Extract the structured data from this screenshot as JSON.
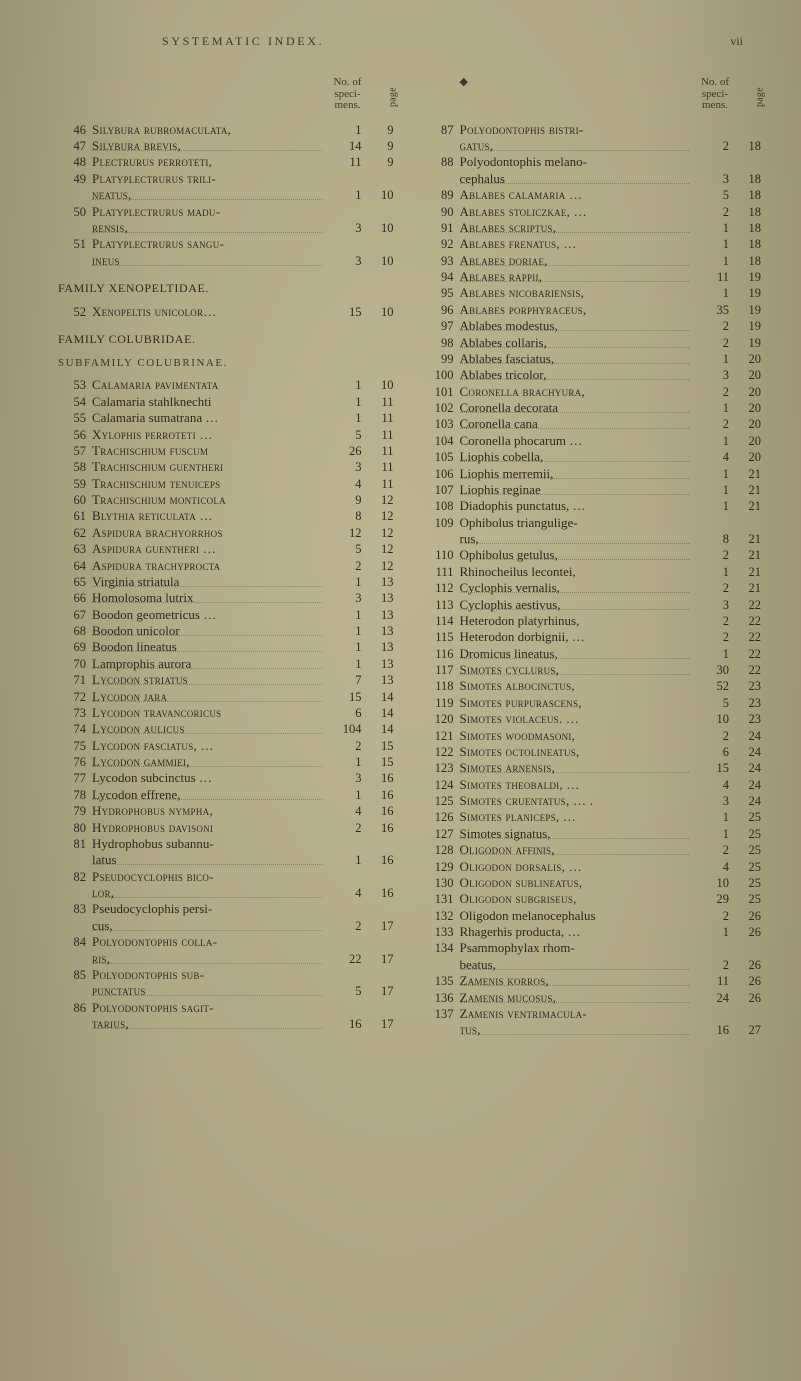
{
  "header": {
    "running_title": "SYSTEMATIC INDEX.",
    "folio": "vii"
  },
  "column_header": {
    "bullet": "◆",
    "num_label_line1": "No. of",
    "num_label_line2": "speci-",
    "num_label_line3": "mens.",
    "page_label": "page"
  },
  "left": {
    "entries_a": [
      {
        "n": "46",
        "name": "Silybura rubromaculata,",
        "sc": true,
        "spc": "1",
        "pg": "9"
      },
      {
        "n": "47",
        "name": "Silybura brevis,",
        "sc": true,
        "leader": true,
        "spc": "14",
        "pg": "9"
      },
      {
        "n": "48",
        "name": "Plectrurus perroteti,",
        "sc": true,
        "spc": "11",
        "pg": "9"
      },
      {
        "n": "49",
        "name": "Platyplectrurus trili-",
        "sc": true,
        "spc": "",
        "pg": ""
      },
      {
        "n": "",
        "cont": true,
        "name": "neatus,",
        "sc": true,
        "leader": true,
        "spc": "1",
        "pg": "10"
      },
      {
        "n": "50",
        "name": "Platyplectrurus madu-",
        "sc": true,
        "spc": "",
        "pg": ""
      },
      {
        "n": "",
        "cont": true,
        "name": "rensis,",
        "sc": true,
        "leader": true,
        "spc": "3",
        "pg": "10"
      },
      {
        "n": "51",
        "name": "Platyplectrurus sangu-",
        "sc": true,
        "spc": "",
        "pg": ""
      },
      {
        "n": "",
        "cont": true,
        "name": "ineus",
        "sc": true,
        "leader": true,
        "spc": "3",
        "pg": "10"
      }
    ],
    "family_a": "FAMILY XENOPELTIDAE.",
    "entries_b": [
      {
        "n": "52",
        "name": "Xenopeltis unicolor…",
        "sc": true,
        "spc": "15",
        "pg": "10"
      }
    ],
    "family_b": "FAMILY COLUBRIDAE.",
    "subfamily": "SUBFAMILY COLUBRINAE.",
    "entries_c": [
      {
        "n": "53",
        "name": "Calamaria pavimentata",
        "sc": true,
        "spc": "1",
        "pg": "10"
      },
      {
        "n": "54",
        "name": "Calamaria stahlknechti",
        "sc": false,
        "spc": "1",
        "pg": "11"
      },
      {
        "n": "55",
        "name": "Calamaria sumatrana …",
        "sc": false,
        "spc": "1",
        "pg": "11"
      },
      {
        "n": "56",
        "name": "Xylophis perroteti …",
        "sc": true,
        "spc": "5",
        "pg": "11"
      },
      {
        "n": "57",
        "name": "Trachischium fuscum",
        "sc": true,
        "spc": "26",
        "pg": "11"
      },
      {
        "n": "58",
        "name": "Trachischium guentheri",
        "sc": true,
        "spc": "3",
        "pg": "11"
      },
      {
        "n": "59",
        "name": "Trachischium tenuiceps",
        "sc": true,
        "spc": "4",
        "pg": "11"
      },
      {
        "n": "60",
        "name": "Trachischium monticola",
        "sc": true,
        "spc": "9",
        "pg": "12"
      },
      {
        "n": "61",
        "name": "Blythia reticulata …",
        "sc": true,
        "spc": "8",
        "pg": "12"
      },
      {
        "n": "62",
        "name": "Aspidura brachyorrhos",
        "sc": true,
        "spc": "12",
        "pg": "12"
      },
      {
        "n": "63",
        "name": "Aspidura guentheri …",
        "sc": true,
        "spc": "5",
        "pg": "12"
      },
      {
        "n": "64",
        "name": "Aspidura trachyprocta",
        "sc": true,
        "spc": "2",
        "pg": "12"
      },
      {
        "n": "65",
        "name": "Virginia striatula",
        "sc": false,
        "leader": true,
        "spc": "1",
        "pg": "13"
      },
      {
        "n": "66",
        "name": "Homolosoma lutrix",
        "sc": false,
        "leader": true,
        "spc": "3",
        "pg": "13"
      },
      {
        "n": "67",
        "name": "Boodon geometricus …",
        "sc": false,
        "spc": "1",
        "pg": "13"
      },
      {
        "n": "68",
        "name": "Boodon unicolor",
        "sc": false,
        "leader": true,
        "spc": "1",
        "pg": "13"
      },
      {
        "n": "69",
        "name": "Boodon lineatus",
        "sc": false,
        "leader": true,
        "spc": "1",
        "pg": "13"
      },
      {
        "n": "70",
        "name": "Lamprophis aurora",
        "sc": false,
        "leader": true,
        "spc": "1",
        "pg": "13"
      },
      {
        "n": "71",
        "name": "Lycodon striatus",
        "sc": true,
        "leader": true,
        "spc": "7",
        "pg": "13"
      },
      {
        "n": "72",
        "name": "Lycodon jara",
        "sc": true,
        "leader": true,
        "spc": "15",
        "pg": "14"
      },
      {
        "n": "73",
        "name": "Lycodon travancoricus",
        "sc": true,
        "spc": "6",
        "pg": "14"
      },
      {
        "n": "74",
        "name": "Lycodon aulicus",
        "sc": true,
        "leader": true,
        "spc": "104",
        "pg": "14"
      },
      {
        "n": "75",
        "name": "Lycodon fasciatus, …",
        "sc": true,
        "spc": "2",
        "pg": "15"
      },
      {
        "n": "76",
        "name": "Lycodon gammiei,",
        "sc": true,
        "leader": true,
        "spc": "1",
        "pg": "15"
      },
      {
        "n": "77",
        "name": "Lycodon subcinctus …",
        "sc": false,
        "spc": "3",
        "pg": "16"
      },
      {
        "n": "78",
        "name": "Lycodon effrene,",
        "sc": false,
        "leader": true,
        "spc": "1",
        "pg": "16"
      },
      {
        "n": "79",
        "name": "Hydrophobus nympha,",
        "sc": true,
        "spc": "4",
        "pg": "16"
      },
      {
        "n": "80",
        "name": "Hydrophobus davisoni",
        "sc": true,
        "spc": "2",
        "pg": "16"
      },
      {
        "n": "81",
        "name": "Hydrophobus subannu-",
        "sc": false,
        "spc": "",
        "pg": ""
      },
      {
        "n": "",
        "cont": true,
        "name": "latus",
        "sc": false,
        "leader": true,
        "spc": "1",
        "pg": "16"
      },
      {
        "n": "82",
        "name": "Pseudocyclophis bico-",
        "sc": true,
        "spc": "",
        "pg": ""
      },
      {
        "n": "",
        "cont": true,
        "name": "lor,",
        "sc": true,
        "leader": true,
        "spc": "4",
        "pg": "16"
      },
      {
        "n": "83",
        "name": "Pseudocyclophis persi-",
        "sc": false,
        "spc": "",
        "pg": ""
      },
      {
        "n": "",
        "cont": true,
        "name": "cus,",
        "sc": false,
        "leader": true,
        "spc": "2",
        "pg": "17"
      },
      {
        "n": "84",
        "name": "Polyodontophis colla-",
        "sc": true,
        "spc": "",
        "pg": ""
      },
      {
        "n": "",
        "cont": true,
        "name": "ris,",
        "sc": true,
        "leader": true,
        "spc": "22",
        "pg": "17"
      },
      {
        "n": "85",
        "name": "Polyodontophis sub-",
        "sc": true,
        "spc": "",
        "pg": ""
      },
      {
        "n": "",
        "cont": true,
        "name": "punctatus",
        "sc": true,
        "leader": true,
        "spc": "5",
        "pg": "17"
      },
      {
        "n": "86",
        "name": "Polyodontophis sagit-",
        "sc": true,
        "spc": "",
        "pg": ""
      },
      {
        "n": "",
        "cont": true,
        "name": "tarius,",
        "sc": true,
        "leader": true,
        "spc": "16",
        "pg": "17"
      }
    ]
  },
  "right": {
    "entries": [
      {
        "n": "87",
        "name": "Polyodontophis bistri-",
        "sc": true,
        "spc": "",
        "pg": ""
      },
      {
        "n": "",
        "cont": true,
        "name": "gatus,",
        "sc": true,
        "leader": true,
        "spc": "2",
        "pg": "18"
      },
      {
        "n": "88",
        "name": "Polyodontophis melano-",
        "sc": false,
        "spc": "",
        "pg": ""
      },
      {
        "n": "",
        "cont": true,
        "name": "cephalus",
        "sc": false,
        "leader": true,
        "spc": "3",
        "pg": "18"
      },
      {
        "n": "89",
        "name": "Ablabes calamaria …",
        "sc": true,
        "spc": "5",
        "pg": "18"
      },
      {
        "n": "90",
        "name": "Ablabes stoliczkae, …",
        "sc": true,
        "spc": "2",
        "pg": "18"
      },
      {
        "n": "91",
        "name": "Ablabes scriptus,",
        "sc": true,
        "leader": true,
        "spc": "1",
        "pg": "18"
      },
      {
        "n": "92",
        "name": "Ablabes frenatus, …",
        "sc": true,
        "spc": "1",
        "pg": "18"
      },
      {
        "n": "93",
        "name": "Ablabes doriae,",
        "sc": true,
        "leader": true,
        "spc": "1",
        "pg": "18"
      },
      {
        "n": "94",
        "name": "Ablabes rappii,",
        "sc": true,
        "leader": true,
        "spc": "11",
        "pg": "19"
      },
      {
        "n": "95",
        "name": "Ablabes nicobariensis,",
        "sc": true,
        "spc": "1",
        "pg": "19"
      },
      {
        "n": "96",
        "name": "Ablabes porphyraceus,",
        "sc": true,
        "spc": "35",
        "pg": "19"
      },
      {
        "n": "97",
        "name": "Ablabes modestus,",
        "sc": false,
        "leader": true,
        "spc": "2",
        "pg": "19"
      },
      {
        "n": "98",
        "name": "Ablabes collaris,",
        "sc": false,
        "leader": true,
        "spc": "2",
        "pg": "19"
      },
      {
        "n": "99",
        "name": "Ablabes fasciatus,",
        "sc": false,
        "leader": true,
        "spc": "1",
        "pg": "20"
      },
      {
        "n": "100",
        "name": "Ablabes tricolor,",
        "sc": false,
        "leader": true,
        "spc": "3",
        "pg": "20"
      },
      {
        "n": "101",
        "name": "Coronella brachyura,",
        "sc": true,
        "spc": "2",
        "pg": "20"
      },
      {
        "n": "102",
        "name": "Coronella decorata",
        "sc": false,
        "leader": true,
        "spc": "1",
        "pg": "20"
      },
      {
        "n": "103",
        "name": "Coronella cana",
        "sc": false,
        "leader": true,
        "spc": "2",
        "pg": "20"
      },
      {
        "n": "104",
        "name": "Coronella phocarum …",
        "sc": false,
        "spc": "1",
        "pg": "20"
      },
      {
        "n": "105",
        "name": "Liophis cobella,",
        "sc": false,
        "leader": true,
        "spc": "4",
        "pg": "20"
      },
      {
        "n": "106",
        "name": "Liophis merremii,",
        "sc": false,
        "leader": true,
        "spc": "1",
        "pg": "21"
      },
      {
        "n": "107",
        "name": "Liophis reginae",
        "sc": false,
        "leader": true,
        "spc": "1",
        "pg": "21"
      },
      {
        "n": "108",
        "name": "Diadophis punctatus, …",
        "sc": false,
        "spc": "1",
        "pg": "21"
      },
      {
        "n": "109",
        "name": "Ophibolus triangulige-",
        "sc": false,
        "spc": "",
        "pg": ""
      },
      {
        "n": "",
        "cont": true,
        "name": "rus,",
        "sc": false,
        "leader": true,
        "spc": "8",
        "pg": "21"
      },
      {
        "n": "110",
        "name": "Ophibolus getulus,",
        "sc": false,
        "leader": true,
        "spc": "2",
        "pg": "21"
      },
      {
        "n": "111",
        "name": "Rhinocheilus lecontei,",
        "sc": false,
        "spc": "1",
        "pg": "21"
      },
      {
        "n": "112",
        "name": "Cyclophis vernalis,",
        "sc": false,
        "leader": true,
        "spc": "2",
        "pg": "21"
      },
      {
        "n": "113",
        "name": "Cyclophis aestivus,",
        "sc": false,
        "leader": true,
        "spc": "3",
        "pg": "22"
      },
      {
        "n": "114",
        "name": "Heterodon platyrhinus,",
        "sc": false,
        "spc": "2",
        "pg": "22"
      },
      {
        "n": "115",
        "name": "Heterodon dorbignii, …",
        "sc": false,
        "spc": "2",
        "pg": "22"
      },
      {
        "n": "116",
        "name": "Dromicus lineatus,",
        "sc": false,
        "leader": true,
        "spc": "1",
        "pg": "22"
      },
      {
        "n": "117",
        "name": "Simotes cyclurus,",
        "sc": true,
        "leader": true,
        "spc": "30",
        "pg": "22"
      },
      {
        "n": "118",
        "name": "Simotes albocinctus,",
        "sc": true,
        "spc": "52",
        "pg": "23"
      },
      {
        "n": "119",
        "name": "Simotes purpurascens,",
        "sc": true,
        "spc": "5",
        "pg": "23"
      },
      {
        "n": "120",
        "name": "Simotes violaceus. …",
        "sc": true,
        "spc": "10",
        "pg": "23"
      },
      {
        "n": "121",
        "name": "Simotes woodmasoni,",
        "sc": true,
        "spc": "2",
        "pg": "24"
      },
      {
        "n": "122",
        "name": "Simotes octolineatus,",
        "sc": true,
        "spc": "6",
        "pg": "24"
      },
      {
        "n": "123",
        "name": "Simotes arnensis,",
        "sc": true,
        "leader": true,
        "spc": "15",
        "pg": "24"
      },
      {
        "n": "124",
        "name": "Simotes theobaldi, …",
        "sc": true,
        "spc": "4",
        "pg": "24"
      },
      {
        "n": "125",
        "name": "Simotes cruentatus, … .",
        "sc": true,
        "spc": "3",
        "pg": "24"
      },
      {
        "n": "126",
        "name": "Simotes planiceps, …",
        "sc": true,
        "spc": "1",
        "pg": "25"
      },
      {
        "n": "127",
        "name": "Simotes signatus,",
        "sc": false,
        "leader": true,
        "spc": "1",
        "pg": "25"
      },
      {
        "n": "128",
        "name": "Oligodon affinis,",
        "sc": true,
        "leader": true,
        "spc": "2",
        "pg": "25"
      },
      {
        "n": "129",
        "name": "Oligodon dorsalis, …",
        "sc": true,
        "spc": "4",
        "pg": "25"
      },
      {
        "n": "130",
        "name": "Oligodon sublineatus,",
        "sc": true,
        "spc": "10",
        "pg": "25"
      },
      {
        "n": "131",
        "name": "Oligodon subgriseus,",
        "sc": true,
        "spc": "29",
        "pg": "25"
      },
      {
        "n": "132",
        "name": "Oligodon melanocephalus",
        "sc": false,
        "spc": "2",
        "pg": "26"
      },
      {
        "n": "133",
        "name": "Rhagerhis producta, …",
        "sc": false,
        "spc": "1",
        "pg": "26"
      },
      {
        "n": "134",
        "name": "Psammophylax rhom-",
        "sc": false,
        "spc": "",
        "pg": ""
      },
      {
        "n": "",
        "cont": true,
        "name": "beatus,",
        "sc": false,
        "leader": true,
        "spc": "2",
        "pg": "26"
      },
      {
        "n": "135",
        "name": "Zamenis korros,",
        "sc": true,
        "leader": true,
        "spc": "11",
        "pg": "26"
      },
      {
        "n": "136",
        "name": "Zamenis mucosus,",
        "sc": true,
        "leader": true,
        "spc": "24",
        "pg": "26"
      },
      {
        "n": "137",
        "name": "Zamenis ventrimacula-",
        "sc": true,
        "spc": "",
        "pg": ""
      },
      {
        "n": "",
        "cont": true,
        "name": "tus,",
        "sc": true,
        "leader": true,
        "spc": "16",
        "pg": "27"
      }
    ]
  }
}
